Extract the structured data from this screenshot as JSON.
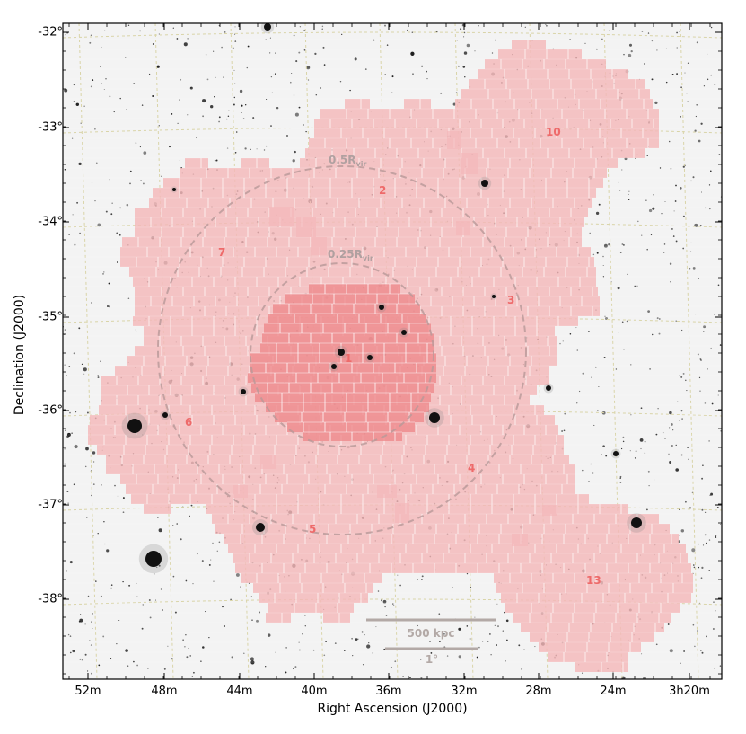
{
  "figure": {
    "xlabel": "Right Ascension (J2000)",
    "ylabel": "Declination (J2000)",
    "ra_ticks": [
      "52m",
      "48m",
      "44m",
      "40m",
      "36m",
      "32m",
      "28m",
      "24m",
      "3h20m"
    ],
    "dec_ticks": [
      "-32°",
      "-33°",
      "-34°",
      "-35°",
      "-36°",
      "-37°",
      "-38°"
    ]
  },
  "circles": {
    "inner": {
      "label": "0.25R",
      "sub": "vir"
    },
    "outer": {
      "label": "0.5R",
      "sub": "vir"
    }
  },
  "fields": [
    {
      "id": "1"
    },
    {
      "id": "2"
    },
    {
      "id": "3"
    },
    {
      "id": "4"
    },
    {
      "id": "5"
    },
    {
      "id": "6"
    },
    {
      "id": "7"
    },
    {
      "id": "10"
    },
    {
      "id": "13"
    }
  ],
  "scale_bars": {
    "physical": "500 kpc",
    "angular": "1°"
  },
  "colors": {
    "field_fill": "#f4b8ba",
    "core_fill": "#ee8688",
    "field_label": "#ee6a6a",
    "circle": "#b89898",
    "scale_bar": "#b3a9a6",
    "grid": "#d9d4a8"
  }
}
